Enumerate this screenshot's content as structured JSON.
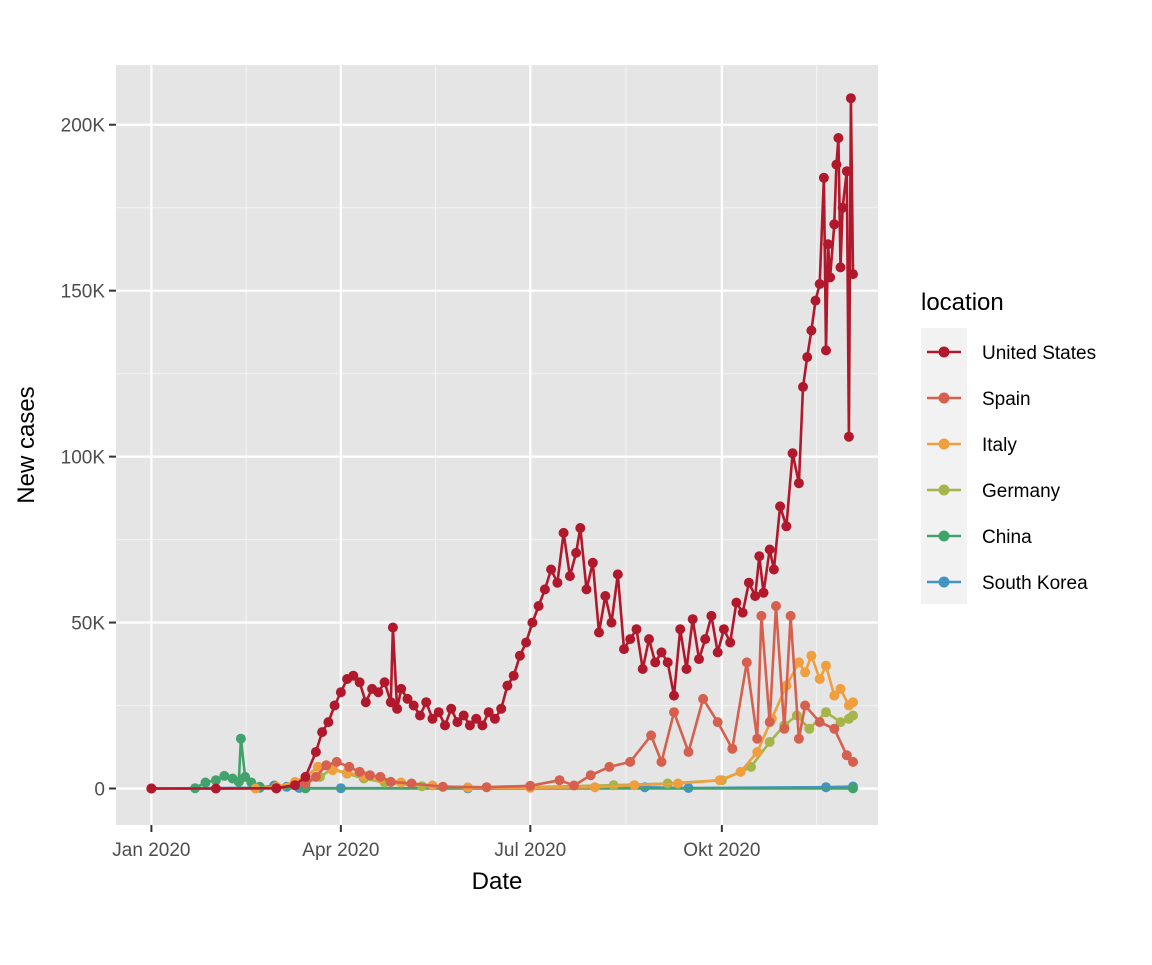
{
  "chart_data": {
    "type": "line",
    "xlabel": "Date",
    "ylabel": "New cases",
    "x_tick_labels": [
      "Jan 2020",
      "Apr 2020",
      "Jul 2020",
      "Okt 2020"
    ],
    "x_tick_dates": [
      "2020-01-01",
      "2020-04-01",
      "2020-07-01",
      "2020-10-01"
    ],
    "x_range": [
      "2019-12-15",
      "2020-12-15"
    ],
    "y_tick_labels": [
      "0",
      "50K",
      "100K",
      "150K",
      "200K"
    ],
    "y_tick_values": [
      0,
      50000,
      100000,
      150000,
      200000
    ],
    "ylim": [
      -11000,
      218000
    ],
    "legend_title": "location",
    "legend_position": "right",
    "grid": true,
    "series": [
      {
        "name": "United States",
        "color": "#b2182b",
        "points": [
          [
            "2020-01-01",
            0
          ],
          [
            "2020-02-01",
            0
          ],
          [
            "2020-03-01",
            100
          ],
          [
            "2020-03-10",
            1000
          ],
          [
            "2020-03-15",
            3500
          ],
          [
            "2020-03-20",
            11000
          ],
          [
            "2020-03-23",
            17000
          ],
          [
            "2020-03-26",
            20000
          ],
          [
            "2020-03-29",
            25000
          ],
          [
            "2020-04-01",
            29000
          ],
          [
            "2020-04-04",
            33000
          ],
          [
            "2020-04-07",
            34000
          ],
          [
            "2020-04-10",
            32000
          ],
          [
            "2020-04-13",
            26000
          ],
          [
            "2020-04-16",
            30000
          ],
          [
            "2020-04-19",
            29000
          ],
          [
            "2020-04-22",
            32000
          ],
          [
            "2020-04-25",
            26000
          ],
          [
            "2020-04-26",
            48500
          ],
          [
            "2020-04-28",
            24000
          ],
          [
            "2020-04-30",
            30000
          ],
          [
            "2020-05-03",
            27000
          ],
          [
            "2020-05-06",
            25000
          ],
          [
            "2020-05-09",
            22000
          ],
          [
            "2020-05-12",
            26000
          ],
          [
            "2020-05-15",
            21000
          ],
          [
            "2020-05-18",
            23000
          ],
          [
            "2020-05-21",
            19000
          ],
          [
            "2020-05-24",
            24000
          ],
          [
            "2020-05-27",
            20000
          ],
          [
            "2020-05-30",
            22000
          ],
          [
            "2020-06-02",
            19000
          ],
          [
            "2020-06-05",
            21000
          ],
          [
            "2020-06-08",
            19000
          ],
          [
            "2020-06-11",
            23000
          ],
          [
            "2020-06-14",
            21000
          ],
          [
            "2020-06-17",
            24000
          ],
          [
            "2020-06-20",
            31000
          ],
          [
            "2020-06-23",
            34000
          ],
          [
            "2020-06-26",
            40000
          ],
          [
            "2020-06-29",
            44000
          ],
          [
            "2020-07-02",
            50000
          ],
          [
            "2020-07-05",
            55000
          ],
          [
            "2020-07-08",
            60000
          ],
          [
            "2020-07-11",
            66000
          ],
          [
            "2020-07-14",
            62000
          ],
          [
            "2020-07-17",
            77000
          ],
          [
            "2020-07-20",
            64000
          ],
          [
            "2020-07-23",
            71000
          ],
          [
            "2020-07-25",
            78500
          ],
          [
            "2020-07-28",
            60000
          ],
          [
            "2020-07-31",
            68000
          ],
          [
            "2020-08-03",
            47000
          ],
          [
            "2020-08-06",
            58000
          ],
          [
            "2020-08-09",
            50000
          ],
          [
            "2020-08-12",
            64500
          ],
          [
            "2020-08-15",
            42000
          ],
          [
            "2020-08-18",
            45000
          ],
          [
            "2020-08-21",
            48000
          ],
          [
            "2020-08-24",
            36000
          ],
          [
            "2020-08-27",
            45000
          ],
          [
            "2020-08-30",
            38000
          ],
          [
            "2020-09-02",
            41000
          ],
          [
            "2020-09-05",
            38000
          ],
          [
            "2020-09-08",
            28000
          ],
          [
            "2020-09-11",
            48000
          ],
          [
            "2020-09-14",
            36000
          ],
          [
            "2020-09-17",
            51000
          ],
          [
            "2020-09-20",
            39000
          ],
          [
            "2020-09-23",
            45000
          ],
          [
            "2020-09-26",
            52000
          ],
          [
            "2020-09-29",
            41000
          ],
          [
            "2020-10-02",
            48000
          ],
          [
            "2020-10-05",
            44000
          ],
          [
            "2020-10-08",
            56000
          ],
          [
            "2020-10-11",
            53000
          ],
          [
            "2020-10-14",
            62000
          ],
          [
            "2020-10-17",
            58000
          ],
          [
            "2020-10-19",
            70000
          ],
          [
            "2020-10-21",
            59000
          ],
          [
            "2020-10-24",
            72000
          ],
          [
            "2020-10-26",
            66000
          ],
          [
            "2020-10-29",
            85000
          ],
          [
            "2020-11-01",
            79000
          ],
          [
            "2020-11-04",
            101000
          ],
          [
            "2020-11-07",
            92000
          ],
          [
            "2020-11-09",
            121000
          ],
          [
            "2020-11-11",
            130000
          ],
          [
            "2020-11-13",
            138000
          ],
          [
            "2020-11-15",
            147000
          ],
          [
            "2020-11-17",
            152000
          ],
          [
            "2020-11-19",
            184000
          ],
          [
            "2020-11-20",
            132000
          ],
          [
            "2020-11-21",
            164000
          ],
          [
            "2020-11-22",
            154000
          ],
          [
            "2020-11-24",
            170000
          ],
          [
            "2020-11-25",
            188000
          ],
          [
            "2020-11-26",
            196000
          ],
          [
            "2020-11-27",
            157000
          ],
          [
            "2020-11-28",
            175000
          ],
          [
            "2020-11-30",
            186000
          ],
          [
            "2020-12-01",
            106000
          ],
          [
            "2020-12-02",
            208000
          ],
          [
            "2020-12-03",
            155000
          ]
        ]
      },
      {
        "name": "Spain",
        "color": "#d6604d",
        "points": [
          [
            "2020-01-01",
            0
          ],
          [
            "2020-03-01",
            0
          ],
          [
            "2020-03-15",
            1500
          ],
          [
            "2020-03-20",
            3500
          ],
          [
            "2020-03-25",
            7000
          ],
          [
            "2020-03-30",
            8000
          ],
          [
            "2020-04-05",
            6500
          ],
          [
            "2020-04-10",
            5000
          ],
          [
            "2020-04-15",
            4000
          ],
          [
            "2020-04-20",
            3500
          ],
          [
            "2020-04-25",
            2000
          ],
          [
            "2020-05-05",
            1500
          ],
          [
            "2020-05-20",
            500
          ],
          [
            "2020-06-10",
            400
          ],
          [
            "2020-07-01",
            800
          ],
          [
            "2020-07-15",
            2500
          ],
          [
            "2020-07-22",
            900
          ],
          [
            "2020-07-30",
            4000
          ],
          [
            "2020-08-08",
            6500
          ],
          [
            "2020-08-18",
            8000
          ],
          [
            "2020-08-28",
            16000
          ],
          [
            "2020-09-02",
            8000
          ],
          [
            "2020-09-08",
            23000
          ],
          [
            "2020-09-15",
            11000
          ],
          [
            "2020-09-22",
            27000
          ],
          [
            "2020-09-29",
            20000
          ],
          [
            "2020-10-06",
            12000
          ],
          [
            "2020-10-13",
            38000
          ],
          [
            "2020-10-18",
            15000
          ],
          [
            "2020-10-20",
            52000
          ],
          [
            "2020-10-24",
            20000
          ],
          [
            "2020-10-27",
            55000
          ],
          [
            "2020-10-31",
            18000
          ],
          [
            "2020-11-03",
            52000
          ],
          [
            "2020-11-07",
            15000
          ],
          [
            "2020-11-10",
            25000
          ],
          [
            "2020-11-17",
            20000
          ],
          [
            "2020-11-24",
            18000
          ],
          [
            "2020-11-30",
            10000
          ],
          [
            "2020-12-03",
            8000
          ]
        ]
      },
      {
        "name": "Italy",
        "color": "#f09e3e",
        "points": [
          [
            "2020-01-01",
            0
          ],
          [
            "2020-02-20",
            0
          ],
          [
            "2020-03-01",
            500
          ],
          [
            "2020-03-10",
            2000
          ],
          [
            "2020-03-15",
            3500
          ],
          [
            "2020-03-21",
            6500
          ],
          [
            "2020-03-28",
            5500
          ],
          [
            "2020-04-04",
            4800
          ],
          [
            "2020-04-12",
            3800
          ],
          [
            "2020-04-20",
            3000
          ],
          [
            "2020-04-30",
            1800
          ],
          [
            "2020-05-15",
            900
          ],
          [
            "2020-06-01",
            300
          ],
          [
            "2020-07-01",
            200
          ],
          [
            "2020-08-01",
            400
          ],
          [
            "2020-08-20",
            1000
          ],
          [
            "2020-09-10",
            1500
          ],
          [
            "2020-09-30",
            2500
          ],
          [
            "2020-10-10",
            5000
          ],
          [
            "2020-10-18",
            11000
          ],
          [
            "2020-10-25",
            21000
          ],
          [
            "2020-11-01",
            31000
          ],
          [
            "2020-11-07",
            38000
          ],
          [
            "2020-11-10",
            35000
          ],
          [
            "2020-11-13",
            40000
          ],
          [
            "2020-11-17",
            33000
          ],
          [
            "2020-11-20",
            37000
          ],
          [
            "2020-11-24",
            28000
          ],
          [
            "2020-11-27",
            30000
          ],
          [
            "2020-12-01",
            25000
          ],
          [
            "2020-12-03",
            26000
          ]
        ]
      },
      {
        "name": "Germany",
        "color": "#a6b44a",
        "points": [
          [
            "2020-01-01",
            0
          ],
          [
            "2020-03-01",
            0
          ],
          [
            "2020-03-15",
            1500
          ],
          [
            "2020-03-22",
            3500
          ],
          [
            "2020-03-28",
            6000
          ],
          [
            "2020-04-04",
            4500
          ],
          [
            "2020-04-12",
            3000
          ],
          [
            "2020-04-22",
            1800
          ],
          [
            "2020-05-10",
            700
          ],
          [
            "2020-06-01",
            300
          ],
          [
            "2020-07-01",
            400
          ],
          [
            "2020-08-10",
            1000
          ],
          [
            "2020-09-05",
            1500
          ],
          [
            "2020-10-01",
            2500
          ],
          [
            "2020-10-15",
            6500
          ],
          [
            "2020-10-24",
            14000
          ],
          [
            "2020-10-31",
            19000
          ],
          [
            "2020-11-06",
            22000
          ],
          [
            "2020-11-12",
            18000
          ],
          [
            "2020-11-20",
            23000
          ],
          [
            "2020-11-27",
            20000
          ],
          [
            "2020-12-01",
            21000
          ],
          [
            "2020-12-03",
            22000
          ]
        ]
      },
      {
        "name": "China",
        "color": "#41a36b",
        "points": [
          [
            "2020-01-01",
            0
          ],
          [
            "2020-01-22",
            100
          ],
          [
            "2020-01-27",
            1800
          ],
          [
            "2020-02-01",
            2500
          ],
          [
            "2020-02-05",
            3800
          ],
          [
            "2020-02-09",
            3000
          ],
          [
            "2020-02-12",
            2000
          ],
          [
            "2020-02-13",
            15000
          ],
          [
            "2020-02-15",
            3500
          ],
          [
            "2020-02-18",
            1800
          ],
          [
            "2020-02-22",
            500
          ],
          [
            "2020-03-01",
            200
          ],
          [
            "2020-03-15",
            30
          ],
          [
            "2020-12-03",
            20
          ]
        ]
      },
      {
        "name": "South Korea",
        "color": "#4393c3",
        "points": [
          [
            "2020-01-01",
            0
          ],
          [
            "2020-02-22",
            200
          ],
          [
            "2020-02-29",
            900
          ],
          [
            "2020-03-06",
            500
          ],
          [
            "2020-03-12",
            150
          ],
          [
            "2020-04-01",
            100
          ],
          [
            "2020-06-01",
            50
          ],
          [
            "2020-08-25",
            400
          ],
          [
            "2020-09-15",
            150
          ],
          [
            "2020-11-20",
            400
          ],
          [
            "2020-12-03",
            600
          ]
        ]
      }
    ]
  }
}
